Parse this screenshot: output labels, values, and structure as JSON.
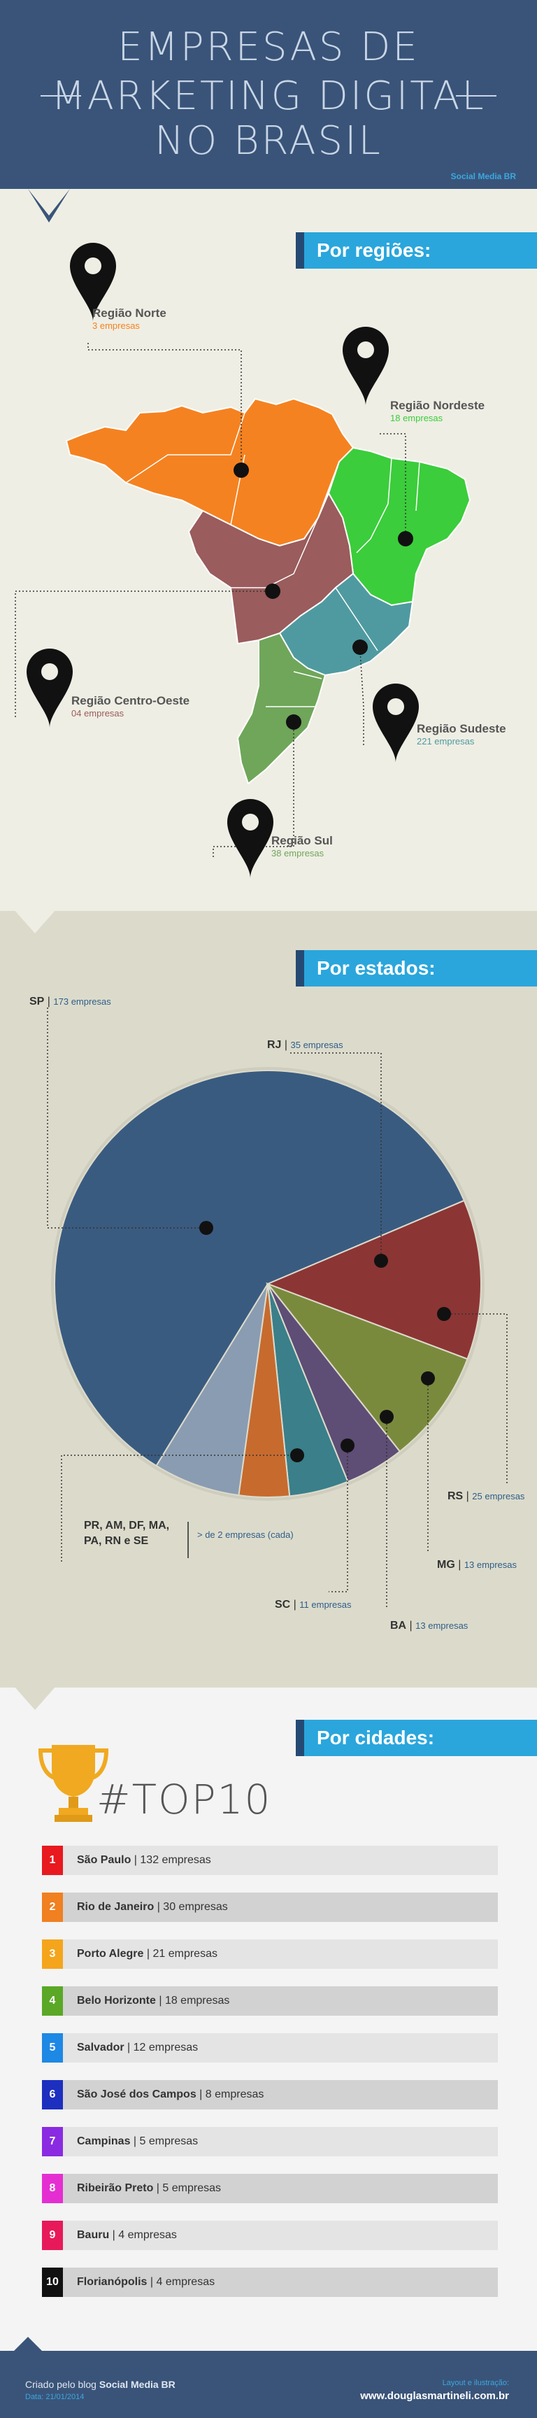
{
  "header": {
    "title_line1": "EMPRESAS DE",
    "title_line2": "MARKETING DIGITAL",
    "title_line3": "NO BRASIL",
    "credit": "Social Media BR"
  },
  "regions": {
    "banner": "Por regiões:",
    "items": [
      {
        "name": "Região Norte",
        "count": "3 empresas",
        "color": "#f58220"
      },
      {
        "name": "Região Nordeste",
        "count": "18 empresas",
        "color": "#3bcd3b"
      },
      {
        "name": "Região Centro-Oeste",
        "count": "04 empresas",
        "color": "#9a5c5c"
      },
      {
        "name": "Região Sudeste",
        "count": "221 empresas",
        "color": "#4f9aa0"
      },
      {
        "name": "Região Sul",
        "count": "38 empresas",
        "color": "#6fa65a"
      }
    ]
  },
  "states": {
    "banner": "Por estados:",
    "labels": {
      "sp_code": "SP",
      "sp_count": "173 empresas",
      "rj_code": "RJ",
      "rj_count": "35 empresas",
      "rs_code": "RS",
      "rs_count": "25 empresas",
      "mg_code": "MG",
      "mg_count": "13 empresas",
      "ba_code": "BA",
      "ba_count": "13 empresas",
      "sc_code": "SC",
      "sc_count": "11 empresas",
      "others_line1": "PR, AM, DF, MA,",
      "others_line2": "PA, RN e SE",
      "others_count": "> de 2 empresas (cada)"
    }
  },
  "chart_data": {
    "type": "pie",
    "categories": [
      "SP",
      "RJ",
      "RS",
      "MG",
      "BA",
      "SC",
      "PR, AM, DF, MA, PA, RN e SE"
    ],
    "values": [
      173,
      35,
      25,
      13,
      13,
      11,
      19
    ],
    "colors": [
      "#3a5b80",
      "#8c3535",
      "#7a8a3d",
      "#5e4d75",
      "#3a7f8a",
      "#c76a2e",
      "#8a9cb2"
    ]
  },
  "cities": {
    "banner": "Por cidades:",
    "top_label": "#TOP10",
    "items": [
      {
        "rank": "1",
        "name": "São Paulo",
        "count": "132 empresas",
        "color": "#e8191f"
      },
      {
        "rank": "2",
        "name": "Rio de Janeiro",
        "count": "30 empresas",
        "color": "#f08020"
      },
      {
        "rank": "3",
        "name": "Porto Alegre",
        "count": "21 empresas",
        "color": "#f4a51c"
      },
      {
        "rank": "4",
        "name": "Belo Horizonte",
        "count": "18 empresas",
        "color": "#5aa825"
      },
      {
        "rank": "5",
        "name": "Salvador",
        "count": "12 empresas",
        "color": "#1e88e5"
      },
      {
        "rank": "6",
        "name": "São José dos Campos",
        "count": "8 empresas",
        "color": "#1c2fbf"
      },
      {
        "rank": "7",
        "name": "Campinas",
        "count": "5 empresas",
        "color": "#8a2be2"
      },
      {
        "rank": "8",
        "name": "Ribeirão Preto",
        "count": "5 empresas",
        "color": "#e52ed2"
      },
      {
        "rank": "9",
        "name": "Bauru",
        "count": "4 empresas",
        "color": "#e8195a"
      },
      {
        "rank": "10",
        "name": "Florianópolis",
        "count": "4 empresas",
        "color": "#111111"
      }
    ],
    "separator": " | "
  },
  "footer": {
    "created_by": "Criado pelo blog ",
    "blog_name": "Social Media BR",
    "date": "Data: 21/01/2014",
    "layout_credit": "Layout e ilustração:",
    "site": "www.douglasmartineli.com.br"
  }
}
